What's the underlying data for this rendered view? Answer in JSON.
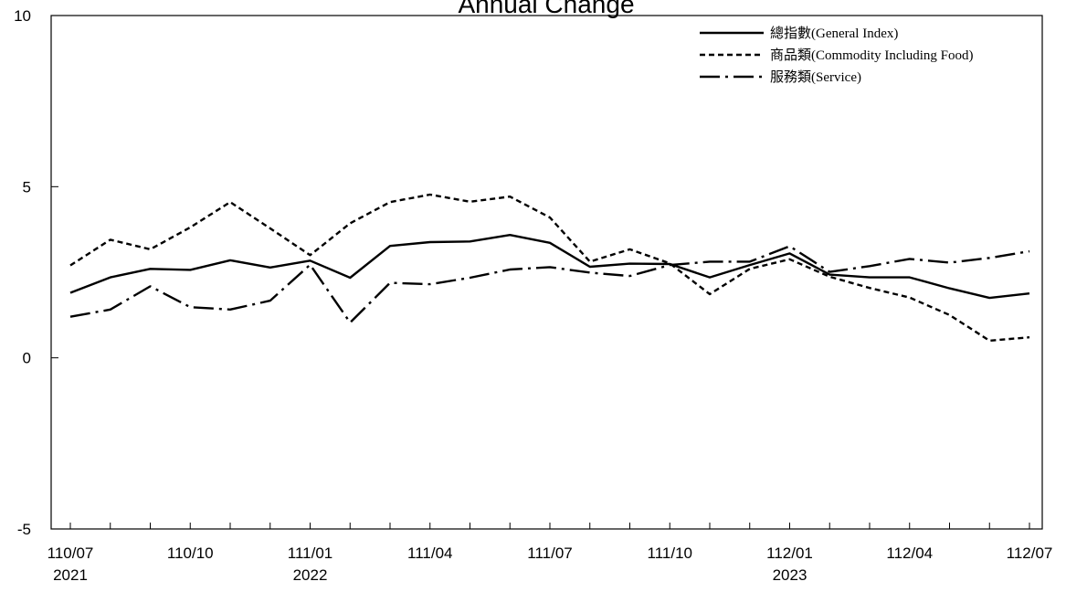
{
  "chart_data": {
    "type": "line",
    "title": "Annual Change",
    "ylim": [
      -5,
      10
    ],
    "yticks": [
      -5,
      0,
      5,
      10
    ],
    "x_tick_labels": [
      {
        "index": 0,
        "label": "110/07",
        "year": "2021"
      },
      {
        "index": 3,
        "label": "110/10",
        "year": ""
      },
      {
        "index": 6,
        "label": "111/01",
        "year": "2022"
      },
      {
        "index": 9,
        "label": "111/04",
        "year": ""
      },
      {
        "index": 12,
        "label": "111/07",
        "year": ""
      },
      {
        "index": 15,
        "label": "111/10",
        "year": ""
      },
      {
        "index": 18,
        "label": "112/01",
        "year": "2023"
      },
      {
        "index": 21,
        "label": "112/04",
        "year": ""
      },
      {
        "index": 24,
        "label": "112/07",
        "year": ""
      }
    ],
    "x": [
      "110/07",
      "110/08",
      "110/09",
      "110/10",
      "110/11",
      "110/12",
      "111/01",
      "111/02",
      "111/03",
      "111/04",
      "111/05",
      "111/06",
      "111/07",
      "111/08",
      "111/09",
      "111/10",
      "111/11",
      "111/12",
      "112/01",
      "112/02",
      "112/03",
      "112/04",
      "112/05",
      "112/06",
      "112/07"
    ],
    "series": [
      {
        "name": "總指數(General Index)",
        "style": "solid",
        "values": [
          1.9,
          2.35,
          2.6,
          2.57,
          2.85,
          2.64,
          2.84,
          2.34,
          3.27,
          3.38,
          3.4,
          3.59,
          3.36,
          2.66,
          2.75,
          2.74,
          2.35,
          2.71,
          3.05,
          2.43,
          2.35,
          2.35,
          2.03,
          1.75,
          1.88
        ]
      },
      {
        "name": "商品類(Commodity Including Food)",
        "style": "dashed",
        "values": [
          2.7,
          3.45,
          3.17,
          3.81,
          4.55,
          3.78,
          3.0,
          3.93,
          4.55,
          4.77,
          4.56,
          4.71,
          4.1,
          2.81,
          3.17,
          2.76,
          1.86,
          2.6,
          2.88,
          2.37,
          2.04,
          1.76,
          1.25,
          0.5,
          0.6
        ]
      },
      {
        "name": "服務類(Service)",
        "style": "dashdot",
        "values": [
          1.2,
          1.41,
          2.09,
          1.48,
          1.41,
          1.67,
          2.72,
          1.03,
          2.19,
          2.15,
          2.34,
          2.58,
          2.65,
          2.49,
          2.39,
          2.71,
          2.81,
          2.81,
          3.26,
          2.51,
          2.68,
          2.89,
          2.78,
          2.92,
          3.11
        ]
      }
    ],
    "legend_position": "top-right",
    "grid": false
  }
}
